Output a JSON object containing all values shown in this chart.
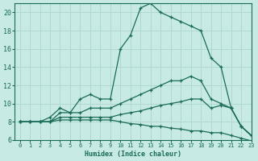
{
  "xlabel": "Humidex (Indice chaleur)",
  "bg_color": "#c8eae4",
  "grid_color": "#b0d8d0",
  "line_color": "#1a6b5a",
  "xlim": [
    -0.5,
    23
  ],
  "ylim": [
    6,
    21
  ],
  "yticks": [
    6,
    8,
    10,
    12,
    14,
    16,
    18,
    20
  ],
  "xticks": [
    0,
    1,
    2,
    3,
    4,
    5,
    6,
    7,
    8,
    9,
    10,
    11,
    12,
    13,
    14,
    15,
    16,
    17,
    18,
    19,
    20,
    21,
    22,
    23
  ],
  "line1_x": [
    0,
    1,
    2,
    3,
    4,
    5,
    6,
    7,
    8,
    9,
    10,
    11,
    12,
    13,
    14,
    15,
    16,
    17,
    18,
    19,
    20,
    21,
    22,
    23
  ],
  "line1_y": [
    8.0,
    8.0,
    8.0,
    8.5,
    9.5,
    9.0,
    10.5,
    11.0,
    10.5,
    10.5,
    16.0,
    17.5,
    20.5,
    21.0,
    20.0,
    19.5,
    19.0,
    18.5,
    18.0,
    15.0,
    14.0,
    9.5,
    7.5,
    6.5
  ],
  "line2_x": [
    0,
    1,
    2,
    3,
    4,
    5,
    6,
    7,
    8,
    9,
    10,
    11,
    12,
    13,
    14,
    15,
    16,
    17,
    18,
    19,
    20,
    21,
    22,
    23
  ],
  "line2_y": [
    8.0,
    8.0,
    8.0,
    8.0,
    9.0,
    9.0,
    9.0,
    9.5,
    9.5,
    9.5,
    10.0,
    10.5,
    11.0,
    11.5,
    12.0,
    12.5,
    12.5,
    13.0,
    12.5,
    10.5,
    10.0,
    9.5,
    7.5,
    6.5
  ],
  "line3_x": [
    0,
    1,
    2,
    3,
    4,
    5,
    6,
    7,
    8,
    9,
    10,
    11,
    12,
    13,
    14,
    15,
    16,
    17,
    18,
    19,
    20,
    21,
    22,
    23
  ],
  "line3_y": [
    8.0,
    8.0,
    8.0,
    8.0,
    8.5,
    8.5,
    8.5,
    8.5,
    8.5,
    8.5,
    8.8,
    9.0,
    9.2,
    9.5,
    9.8,
    10.0,
    10.2,
    10.5,
    10.5,
    9.5,
    9.8,
    9.5,
    7.5,
    6.5
  ],
  "line4_x": [
    0,
    1,
    2,
    3,
    4,
    5,
    6,
    7,
    8,
    9,
    10,
    11,
    12,
    13,
    14,
    15,
    16,
    17,
    18,
    19,
    20,
    21,
    22,
    23
  ],
  "line4_y": [
    8.0,
    8.0,
    8.0,
    8.0,
    8.2,
    8.2,
    8.2,
    8.2,
    8.2,
    8.2,
    8.0,
    7.8,
    7.7,
    7.5,
    7.5,
    7.3,
    7.2,
    7.0,
    7.0,
    6.8,
    6.8,
    6.5,
    6.2,
    5.9
  ]
}
